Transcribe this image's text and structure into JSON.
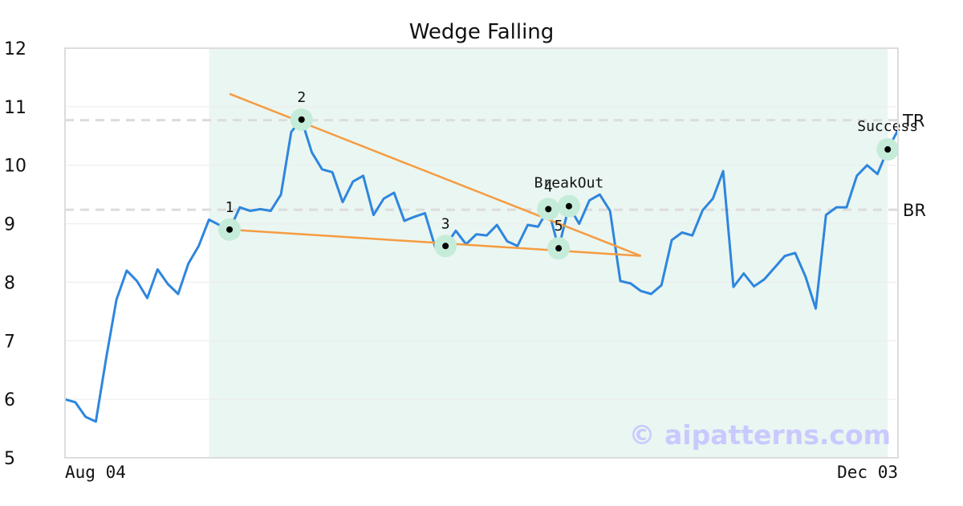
{
  "chart_data": {
    "type": "line",
    "title": "Wedge Falling",
    "xlabel": "",
    "ylabel": "",
    "x_tick_labels": [
      "Aug 04",
      "Dec 03"
    ],
    "ylim": [
      5,
      12
    ],
    "yticks": [
      5,
      6,
      7,
      8,
      9,
      10,
      11,
      12
    ],
    "grid": "horizontal",
    "series": [
      {
        "color": "#2e86de",
        "values": [
          6.0,
          5.95,
          5.7,
          5.62,
          6.7,
          7.7,
          8.2,
          8.02,
          7.73,
          8.22,
          7.97,
          7.8,
          8.32,
          8.62,
          9.07,
          8.98,
          8.9,
          9.28,
          9.22,
          9.25,
          9.22,
          9.5,
          10.57,
          10.78,
          10.22,
          9.93,
          9.88,
          9.37,
          9.72,
          9.82,
          9.15,
          9.43,
          9.53,
          9.05,
          9.12,
          9.18,
          8.6,
          8.62,
          8.88,
          8.65,
          8.82,
          8.8,
          8.98,
          8.7,
          8.62,
          8.98,
          8.95,
          9.25,
          8.58,
          9.3,
          9.0,
          9.4,
          9.5,
          9.22,
          8.02,
          7.98,
          7.85,
          7.8,
          7.95,
          8.72,
          8.85,
          8.8,
          9.23,
          9.43,
          9.9,
          7.92,
          8.15,
          7.93,
          8.05,
          8.25,
          8.45,
          8.5,
          8.1,
          7.55,
          9.15,
          9.28,
          9.28,
          9.82,
          10.0,
          9.85,
          10.27,
          10.6
        ]
      }
    ],
    "pattern_region": {
      "start_index": 14,
      "end_index": 80,
      "color": "#eaf6f1"
    },
    "horizontal_lines": [
      {
        "label": "TR",
        "y": 10.77
      },
      {
        "label": "BR",
        "y": 9.24
      }
    ],
    "trendlines": [
      {
        "name": "upper",
        "x1": 16,
        "y1": 11.22,
        "x2": 56,
        "y2": 8.45
      },
      {
        "name": "lower",
        "x1": 16,
        "y1": 8.9,
        "x2": 56,
        "y2": 8.45
      }
    ],
    "pivot_points": [
      {
        "label": "1",
        "x": 16,
        "y": 8.9,
        "label_pos": "above"
      },
      {
        "label": "2",
        "x": 23,
        "y": 10.78,
        "label_pos": "above"
      },
      {
        "label": "3",
        "x": 37,
        "y": 8.62,
        "label_pos": "above"
      },
      {
        "label": "4",
        "x": 47,
        "y": 9.25,
        "label_pos": "above"
      },
      {
        "label": "5",
        "x": 48,
        "y": 8.58,
        "label_pos": "above-near"
      }
    ],
    "events": [
      {
        "label": "BreakOut",
        "x": 49,
        "y": 9.3
      },
      {
        "label": "Success",
        "x": 80,
        "y": 10.27
      }
    ],
    "colors": {
      "price_line": "#2e86de",
      "trendline": "#f59c42",
      "marker_halo": "#c4ecd9",
      "marker_dot": "#000000",
      "ref_line": "#dcdcdc",
      "frame": "#dddddd",
      "gridline": "#ececec",
      "watermark": "#c9c9ff"
    }
  },
  "watermark": "© aipatterns.com"
}
